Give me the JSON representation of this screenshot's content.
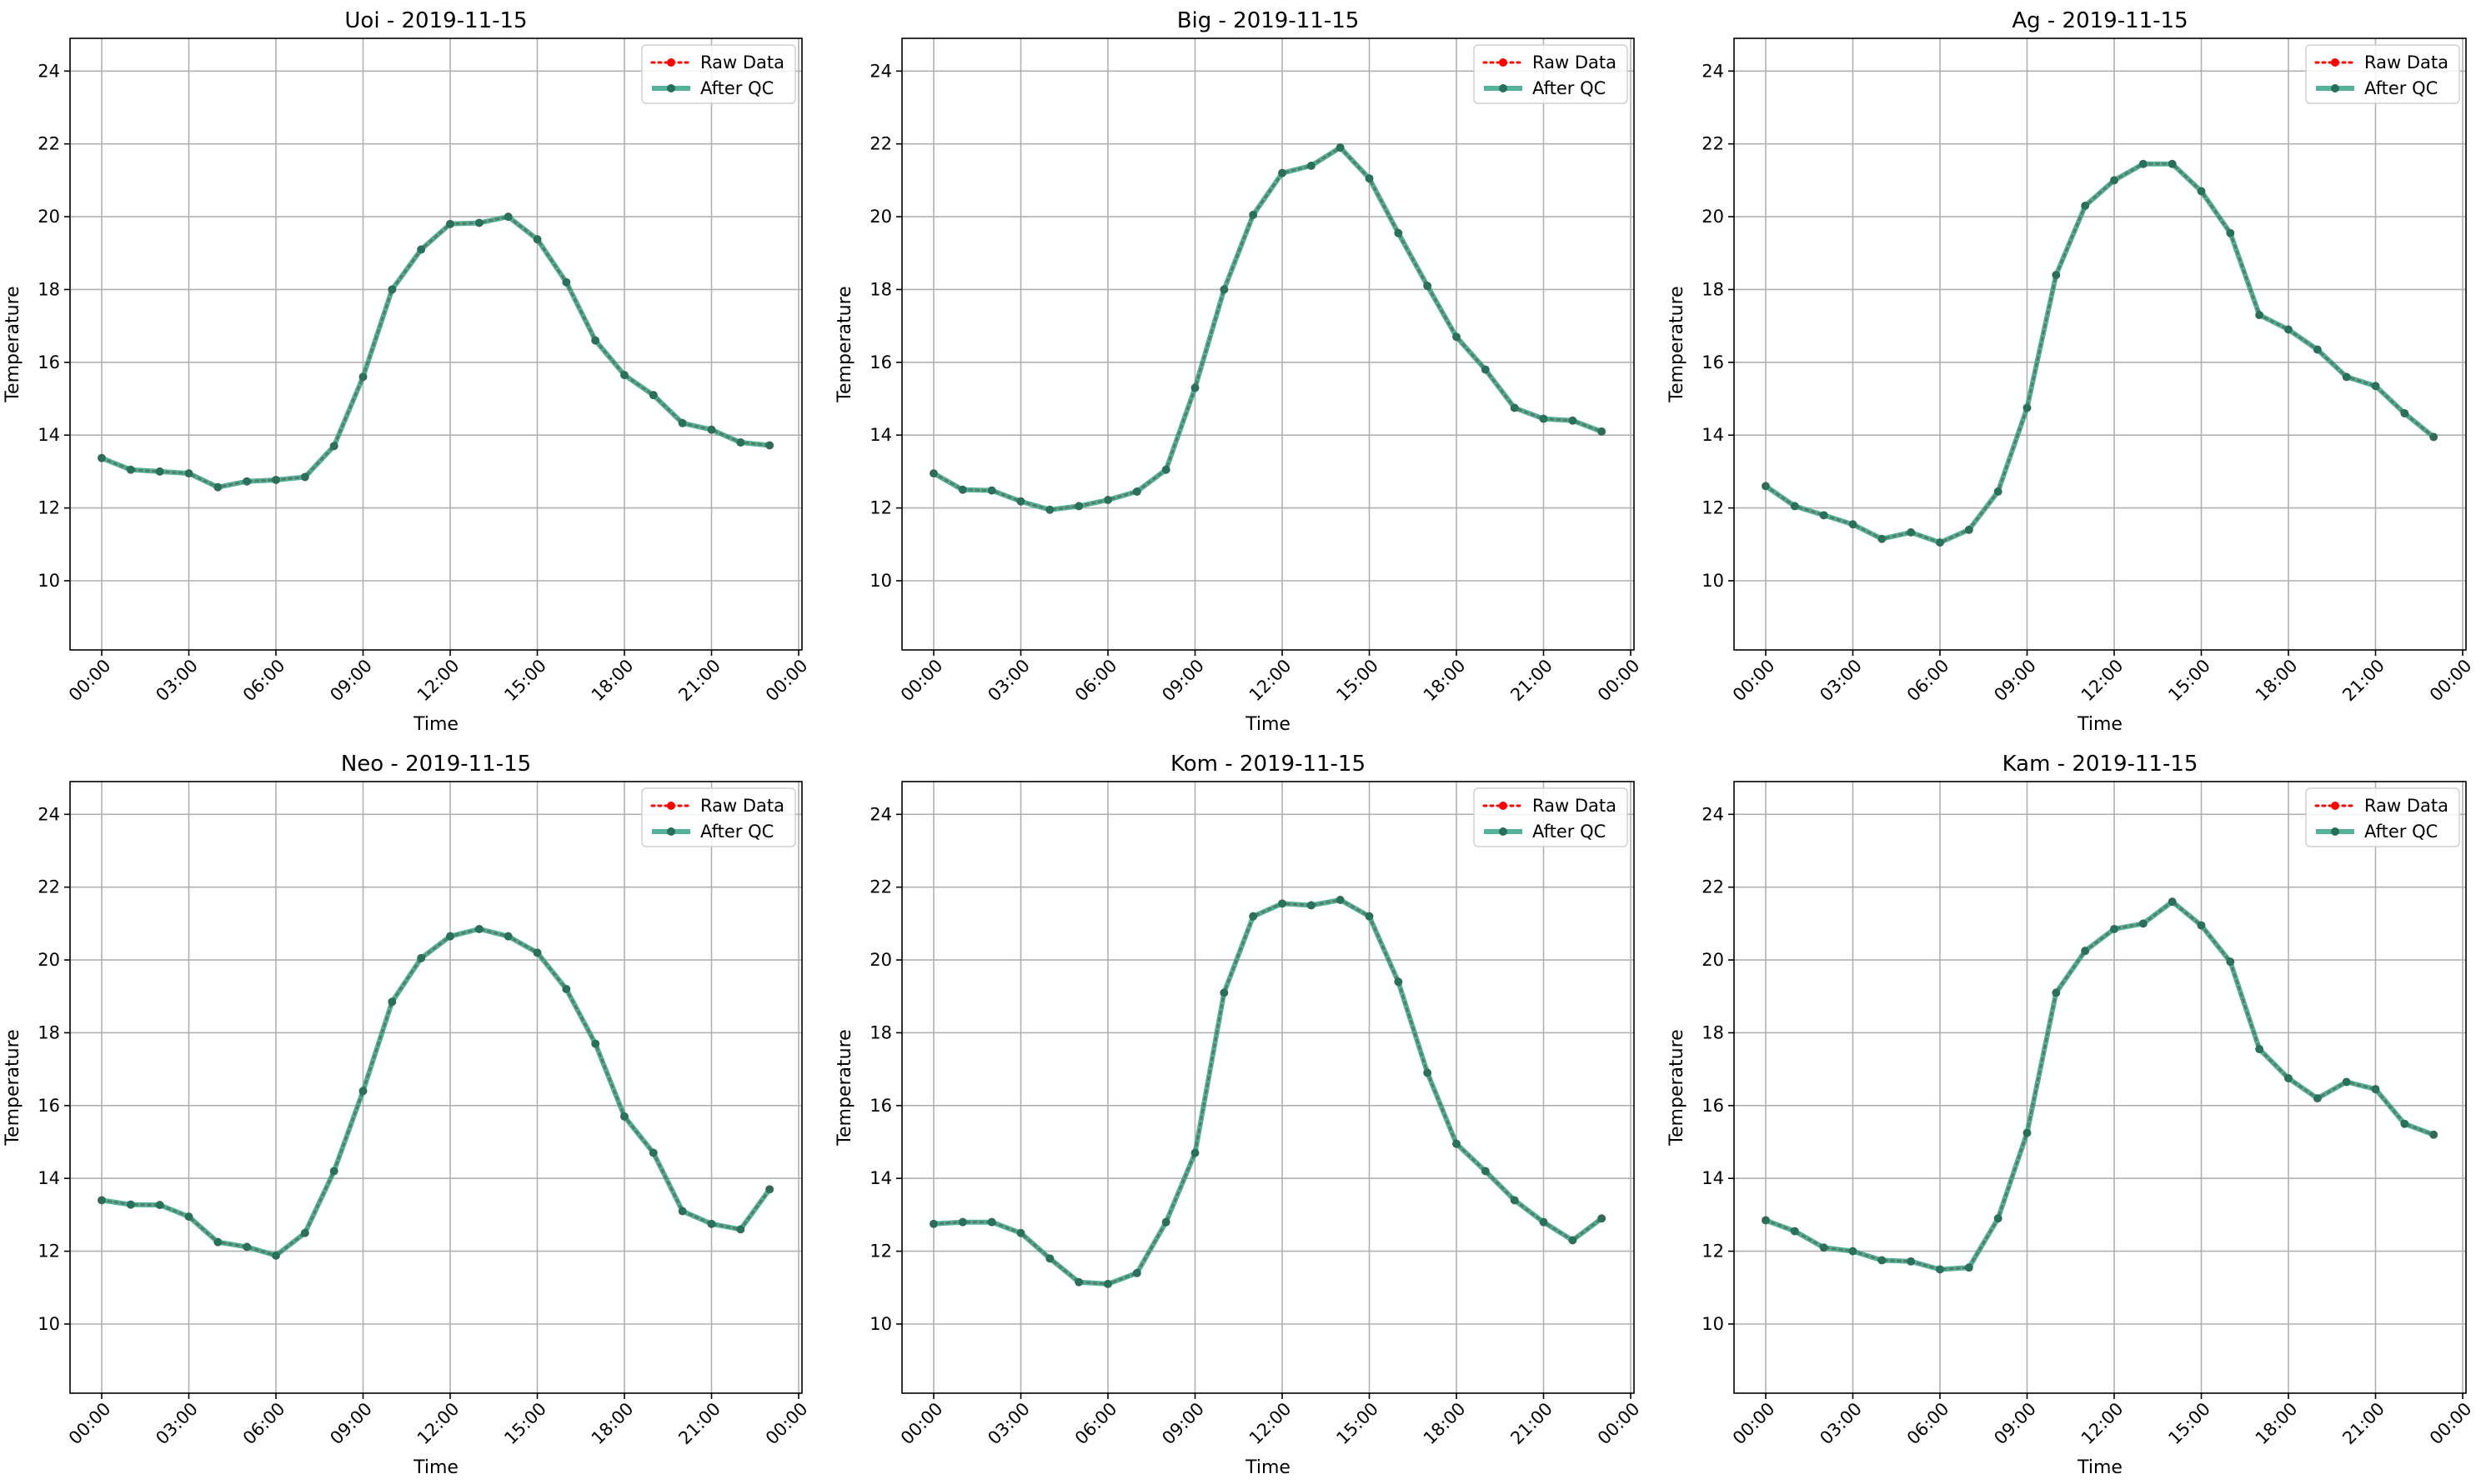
{
  "chart_data": [
    {
      "type": "line",
      "title": "Uoi - 2019-11-15",
      "xlabel": "Time",
      "ylabel": "Temperature",
      "x": [
        "00:00",
        "01:00",
        "02:00",
        "03:00",
        "04:00",
        "05:00",
        "06:00",
        "07:00",
        "08:00",
        "09:00",
        "10:00",
        "11:00",
        "12:00",
        "13:00",
        "14:00",
        "15:00",
        "16:00",
        "17:00",
        "18:00",
        "19:00",
        "20:00",
        "21:00",
        "22:00",
        "23:00"
      ],
      "xticks": [
        "00:00",
        "03:00",
        "06:00",
        "09:00",
        "12:00",
        "15:00",
        "18:00",
        "21:00",
        "00:00"
      ],
      "ylim": [
        8.1,
        24.9
      ],
      "yticks": [
        10,
        12,
        14,
        16,
        18,
        20,
        22,
        24
      ],
      "grid": true,
      "legend_position": "top-right",
      "series": [
        {
          "name": "Raw Data",
          "color": "#ff0000",
          "style": "dotted",
          "values": [
            13.37,
            13.05,
            13.0,
            12.95,
            12.57,
            12.73,
            12.77,
            12.85,
            13.7,
            15.6,
            18.0,
            19.1,
            19.8,
            19.83,
            20.0,
            19.38,
            18.2,
            16.6,
            15.65,
            15.1,
            14.33,
            14.15,
            13.8,
            13.72
          ]
        },
        {
          "name": "After QC",
          "color": "#2a9d7f",
          "style": "solid",
          "values": [
            13.37,
            13.05,
            13.0,
            12.95,
            12.57,
            12.73,
            12.77,
            12.85,
            13.7,
            15.6,
            18.0,
            19.1,
            19.8,
            19.83,
            20.0,
            19.38,
            18.2,
            16.6,
            15.65,
            15.1,
            14.33,
            14.15,
            13.8,
            13.72
          ]
        }
      ]
    },
    {
      "type": "line",
      "title": "Big - 2019-11-15",
      "xlabel": "Time",
      "ylabel": "Temperature",
      "x": [
        "00:00",
        "01:00",
        "02:00",
        "03:00",
        "04:00",
        "05:00",
        "06:00",
        "07:00",
        "08:00",
        "09:00",
        "10:00",
        "11:00",
        "12:00",
        "13:00",
        "14:00",
        "15:00",
        "16:00",
        "17:00",
        "18:00",
        "19:00",
        "20:00",
        "21:00",
        "22:00",
        "23:00"
      ],
      "xticks": [
        "00:00",
        "03:00",
        "06:00",
        "09:00",
        "12:00",
        "15:00",
        "18:00",
        "21:00",
        "00:00"
      ],
      "ylim": [
        8.1,
        24.9
      ],
      "yticks": [
        10,
        12,
        14,
        16,
        18,
        20,
        22,
        24
      ],
      "grid": true,
      "legend_position": "top-right",
      "series": [
        {
          "name": "Raw Data",
          "color": "#ff0000",
          "style": "dotted",
          "values": [
            12.95,
            12.5,
            12.48,
            12.18,
            11.95,
            12.05,
            12.22,
            12.45,
            13.05,
            15.3,
            18.0,
            20.05,
            21.2,
            21.4,
            21.9,
            21.05,
            19.55,
            18.1,
            16.7,
            15.8,
            14.75,
            14.45,
            14.4,
            14.1
          ]
        },
        {
          "name": "After QC",
          "color": "#2a9d7f",
          "style": "solid",
          "values": [
            12.95,
            12.5,
            12.48,
            12.18,
            11.95,
            12.05,
            12.22,
            12.45,
            13.05,
            15.3,
            18.0,
            20.05,
            21.2,
            21.4,
            21.9,
            21.05,
            19.55,
            18.1,
            16.7,
            15.8,
            14.75,
            14.45,
            14.4,
            14.1
          ]
        }
      ]
    },
    {
      "type": "line",
      "title": "Ag - 2019-11-15",
      "xlabel": "Time",
      "ylabel": "Temperature",
      "x": [
        "00:00",
        "01:00",
        "02:00",
        "03:00",
        "04:00",
        "05:00",
        "06:00",
        "07:00",
        "08:00",
        "09:00",
        "10:00",
        "11:00",
        "12:00",
        "13:00",
        "14:00",
        "15:00",
        "16:00",
        "17:00",
        "18:00",
        "19:00",
        "20:00",
        "21:00",
        "22:00",
        "23:00"
      ],
      "xticks": [
        "00:00",
        "03:00",
        "06:00",
        "09:00",
        "12:00",
        "15:00",
        "18:00",
        "21:00",
        "00:00"
      ],
      "ylim": [
        8.1,
        24.9
      ],
      "yticks": [
        10,
        12,
        14,
        16,
        18,
        20,
        22,
        24
      ],
      "grid": true,
      "legend_position": "top-right",
      "series": [
        {
          "name": "Raw Data",
          "color": "#ff0000",
          "style": "dotted",
          "values": [
            12.6,
            12.05,
            11.8,
            11.55,
            11.15,
            11.33,
            11.05,
            11.4,
            12.45,
            14.75,
            18.4,
            20.3,
            21.0,
            21.45,
            21.45,
            20.7,
            19.55,
            17.3,
            16.9,
            16.35,
            15.6,
            15.35,
            14.6,
            13.95
          ]
        },
        {
          "name": "After QC",
          "color": "#2a9d7f",
          "style": "solid",
          "values": [
            12.6,
            12.05,
            11.8,
            11.55,
            11.15,
            11.33,
            11.05,
            11.4,
            12.45,
            14.75,
            18.4,
            20.3,
            21.0,
            21.45,
            21.45,
            20.7,
            19.55,
            17.3,
            16.9,
            16.35,
            15.6,
            15.35,
            14.6,
            13.95
          ]
        }
      ]
    },
    {
      "type": "line",
      "title": "Neo - 2019-11-15",
      "xlabel": "Time",
      "ylabel": "Temperature",
      "x": [
        "00:00",
        "01:00",
        "02:00",
        "03:00",
        "04:00",
        "05:00",
        "06:00",
        "07:00",
        "08:00",
        "09:00",
        "10:00",
        "11:00",
        "12:00",
        "13:00",
        "14:00",
        "15:00",
        "16:00",
        "17:00",
        "18:00",
        "19:00",
        "20:00",
        "21:00",
        "22:00",
        "23:00"
      ],
      "xticks": [
        "00:00",
        "03:00",
        "06:00",
        "09:00",
        "12:00",
        "15:00",
        "18:00",
        "21:00",
        "00:00"
      ],
      "ylim": [
        8.1,
        24.9
      ],
      "yticks": [
        10,
        12,
        14,
        16,
        18,
        20,
        22,
        24
      ],
      "grid": true,
      "legend_position": "top-right",
      "series": [
        {
          "name": "Raw Data",
          "color": "#ff0000",
          "style": "dotted",
          "values": [
            13.4,
            13.28,
            13.27,
            12.95,
            12.25,
            12.12,
            11.88,
            12.5,
            14.2,
            16.4,
            18.85,
            20.05,
            20.65,
            20.85,
            20.65,
            20.2,
            19.2,
            17.7,
            15.7,
            14.7,
            13.1,
            12.75,
            12.6,
            13.7
          ]
        },
        {
          "name": "After QC",
          "color": "#2a9d7f",
          "style": "solid",
          "values": [
            13.4,
            13.28,
            13.27,
            12.95,
            12.25,
            12.12,
            11.88,
            12.5,
            14.2,
            16.4,
            18.85,
            20.05,
            20.65,
            20.85,
            20.65,
            20.2,
            19.2,
            17.7,
            15.7,
            14.7,
            13.1,
            12.75,
            12.6,
            13.7
          ]
        }
      ]
    },
    {
      "type": "line",
      "title": "Kom - 2019-11-15",
      "xlabel": "Time",
      "ylabel": "Temperature",
      "x": [
        "00:00",
        "01:00",
        "02:00",
        "03:00",
        "04:00",
        "05:00",
        "06:00",
        "07:00",
        "08:00",
        "09:00",
        "10:00",
        "11:00",
        "12:00",
        "13:00",
        "14:00",
        "15:00",
        "16:00",
        "17:00",
        "18:00",
        "19:00",
        "20:00",
        "21:00",
        "22:00",
        "23:00"
      ],
      "xticks": [
        "00:00",
        "03:00",
        "06:00",
        "09:00",
        "12:00",
        "15:00",
        "18:00",
        "21:00",
        "00:00"
      ],
      "ylim": [
        8.1,
        24.9
      ],
      "yticks": [
        10,
        12,
        14,
        16,
        18,
        20,
        22,
        24
      ],
      "grid": true,
      "legend_position": "top-right",
      "series": [
        {
          "name": "Raw Data",
          "color": "#ff0000",
          "style": "dotted",
          "values": [
            12.75,
            12.8,
            12.8,
            12.5,
            11.8,
            11.15,
            11.1,
            11.4,
            12.8,
            14.7,
            19.1,
            21.2,
            21.55,
            21.5,
            21.65,
            21.2,
            19.4,
            16.9,
            14.95,
            14.2,
            13.4,
            12.8,
            12.3,
            12.9
          ]
        },
        {
          "name": "After QC",
          "color": "#2a9d7f",
          "style": "solid",
          "values": [
            12.75,
            12.8,
            12.8,
            12.5,
            11.8,
            11.15,
            11.1,
            11.4,
            12.8,
            14.7,
            19.1,
            21.2,
            21.55,
            21.5,
            21.65,
            21.2,
            19.4,
            16.9,
            14.95,
            14.2,
            13.4,
            12.8,
            12.3,
            12.9
          ]
        }
      ]
    },
    {
      "type": "line",
      "title": "Kam - 2019-11-15",
      "xlabel": "Time",
      "ylabel": "Temperature",
      "x": [
        "00:00",
        "01:00",
        "02:00",
        "03:00",
        "04:00",
        "05:00",
        "06:00",
        "07:00",
        "08:00",
        "09:00",
        "10:00",
        "11:00",
        "12:00",
        "13:00",
        "14:00",
        "15:00",
        "16:00",
        "17:00",
        "18:00",
        "19:00",
        "20:00",
        "21:00",
        "22:00",
        "23:00"
      ],
      "xticks": [
        "00:00",
        "03:00",
        "06:00",
        "09:00",
        "12:00",
        "15:00",
        "18:00",
        "21:00",
        "00:00"
      ],
      "ylim": [
        8.1,
        24.9
      ],
      "yticks": [
        10,
        12,
        14,
        16,
        18,
        20,
        22,
        24
      ],
      "grid": true,
      "legend_position": "top-right",
      "series": [
        {
          "name": "Raw Data",
          "color": "#ff0000",
          "style": "dotted",
          "values": [
            12.85,
            12.55,
            12.1,
            12.0,
            11.75,
            11.72,
            11.5,
            11.55,
            12.9,
            15.25,
            19.1,
            20.25,
            20.85,
            21.0,
            21.6,
            20.95,
            19.95,
            17.55,
            16.75,
            16.2,
            16.65,
            16.45,
            15.5,
            15.2
          ]
        },
        {
          "name": "After QC",
          "color": "#2a9d7f",
          "style": "solid",
          "values": [
            12.85,
            12.55,
            12.1,
            12.0,
            11.75,
            11.72,
            11.5,
            11.55,
            12.9,
            15.25,
            19.1,
            20.25,
            20.85,
            21.0,
            21.6,
            20.95,
            19.95,
            17.55,
            16.75,
            16.2,
            16.65,
            16.45,
            15.5,
            15.2
          ]
        }
      ]
    }
  ]
}
